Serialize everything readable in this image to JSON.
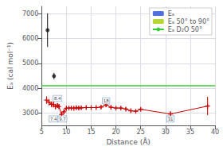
{
  "chart_data": {
    "type": "line",
    "xlabel": "Distance (Å)",
    "ylabel": "Eₐ (cal mol⁻¹)",
    "xlim": [
      5,
      40
    ],
    "ylim": [
      2500,
      7300
    ],
    "xticks": [
      5,
      10,
      15,
      20,
      25,
      30,
      35,
      40
    ],
    "yticks": [
      3000,
      4000,
      5000,
      6000,
      7000
    ],
    "grid": true,
    "legend": "upper right",
    "series": [
      {
        "name": "Eₐ",
        "type": "line",
        "color": "#cc0000",
        "marker": "plus",
        "x": [
          6.0,
          6.5,
          7.0,
          7.4,
          7.8,
          8.2,
          8.5,
          9.0,
          9.5,
          10.0,
          10.5,
          11.0,
          11.5,
          12.0,
          12.5,
          13.0,
          14.0,
          15.0,
          16.0,
          17.0,
          18.0,
          19.0,
          20.0,
          21.0,
          22.0,
          23.0,
          24.0,
          25.0,
          31.0,
          38.5
        ],
        "values": [
          3520,
          3430,
          3350,
          3340,
          3260,
          3300,
          3260,
          2940,
          3050,
          3190,
          3200,
          3200,
          3190,
          3210,
          3200,
          3210,
          3220,
          3220,
          3220,
          3240,
          3330,
          3230,
          3200,
          3200,
          3160,
          3090,
          3070,
          3150,
          2960,
          3280
        ],
        "yerr": [
          150,
          130,
          120,
          120,
          110,
          100,
          100,
          110,
          100,
          90,
          80,
          80,
          70,
          70,
          70,
          60,
          60,
          60,
          60,
          70,
          90,
          70,
          60,
          60,
          60,
          60,
          60,
          60,
          110,
          370
        ]
      },
      {
        "name": "Eₐ 50° to 90°",
        "type": "scatter",
        "color": "#111111",
        "marker": "circle",
        "x": [
          6.2,
          7.5
        ],
        "values": [
          6340,
          4490
        ],
        "yerr": [
          680,
          130
        ]
      },
      {
        "name": "Eₐ D₂O 50°",
        "type": "hline",
        "color": "#33cc33",
        "values": [
          4100
        ]
      }
    ],
    "annotations": [
      {
        "text": "8.4",
        "x": 8.2,
        "y": 3590
      },
      {
        "text": "7.4",
        "x": 7.4,
        "y": 2760
      },
      {
        "text": "9.7",
        "x": 9.2,
        "y": 2760
      },
      {
        "text": "18",
        "x": 18.0,
        "y": 3490
      },
      {
        "text": "31",
        "x": 31.0,
        "y": 2760
      }
    ]
  }
}
